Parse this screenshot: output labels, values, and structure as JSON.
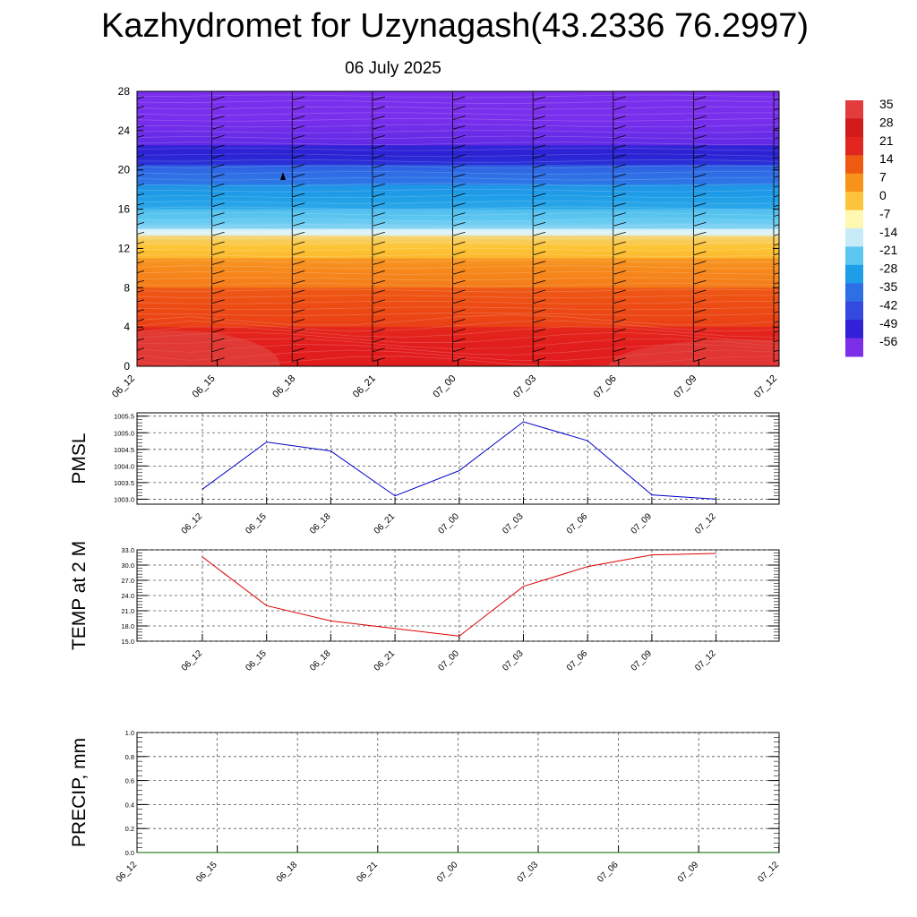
{
  "header": {
    "title": "Kazhydromet for Uzynagash(43.2336 76.2997)",
    "date": "06 July 2025"
  },
  "colorbar": {
    "labels": [
      "35",
      "28",
      "21",
      "14",
      "7",
      "0",
      "-7",
      "-14",
      "-21",
      "-28",
      "-35",
      "-42",
      "-49",
      "-56"
    ],
    "colors": [
      "#e23c3c",
      "#d11a1a",
      "#e0261f",
      "#ef5a12",
      "#f7931a",
      "#fdc33a",
      "#fff8b0",
      "#c8ecf7",
      "#5cc6f0",
      "#1e9ee8",
      "#2f6fe6",
      "#3349e0",
      "#3321d8",
      "#7d2ee8"
    ]
  },
  "chart_data": [
    {
      "type": "heatmap",
      "name": "temperature-cross-section",
      "x": [
        "06_12",
        "06_15",
        "06_18",
        "06_21",
        "07_00",
        "07_03",
        "07_06",
        "07_09",
        "07_12"
      ],
      "y_ticks": [
        "0",
        "4",
        "8",
        "12",
        "16",
        "20",
        "24",
        "28"
      ],
      "ylim": [
        0,
        28
      ],
      "value_range": [
        -56,
        35
      ],
      "layers": [
        {
          "from": 0,
          "to": 4,
          "color": "#e21e1e"
        },
        {
          "from": 4,
          "to": 8,
          "color": "#ed4a14"
        },
        {
          "from": 8,
          "to": 11,
          "color": "#f5861b"
        },
        {
          "from": 11,
          "to": 13.3,
          "color": "#fdc535"
        },
        {
          "from": 13.3,
          "to": 14,
          "color": "#dff4fa"
        },
        {
          "from": 14,
          "to": 16,
          "color": "#5cc6f0"
        },
        {
          "from": 16,
          "to": 18.5,
          "color": "#1e9ee8"
        },
        {
          "from": 18.5,
          "to": 20.5,
          "color": "#2f6fe6"
        },
        {
          "from": 20.5,
          "to": 22.5,
          "color": "#2a22d4"
        },
        {
          "from": 22.5,
          "to": 28,
          "color": "#7a2fed"
        }
      ]
    },
    {
      "type": "line",
      "ylabel": "PMSL",
      "categories": [
        "06_12",
        "06_15",
        "06_18",
        "06_21",
        "07_00",
        "07_03",
        "07_06",
        "07_09",
        "07_12"
      ],
      "series": [
        {
          "values": [
            1003.3,
            1004.72,
            1004.45,
            1003.1,
            1003.86,
            1005.33,
            1004.76,
            1003.13,
            1003.0
          ],
          "color": "#0000cc"
        }
      ],
      "y_ticks": [
        "1003.0",
        "1003.5",
        "1004.0",
        "1004.5",
        "1005.0",
        "1005.5"
      ],
      "ylim": [
        1002.85,
        1005.6
      ],
      "grid": true
    },
    {
      "type": "line",
      "ylabel": "TEMP at 2 M",
      "categories": [
        "06_12",
        "06_15",
        "06_18",
        "06_21",
        "07_00",
        "07_03",
        "07_06",
        "07_09",
        "07_12"
      ],
      "series": [
        {
          "values": [
            31.6,
            22.0,
            19.0,
            17.5,
            16.0,
            25.8,
            29.7,
            32.0,
            32.3
          ],
          "color": "#dd0000"
        }
      ],
      "y_ticks": [
        "15.0",
        "18.0",
        "21.0",
        "24.0",
        "27.0",
        "30.0",
        "33.0"
      ],
      "ylim": [
        15,
        33
      ],
      "grid": true
    },
    {
      "type": "line",
      "ylabel": "PRECIP, mm",
      "categories": [
        "06_12",
        "06_15",
        "06_18",
        "06_21",
        "07_00",
        "07_03",
        "07_06",
        "07_09",
        "07_12"
      ],
      "series": [
        {
          "values": [
            0,
            0,
            0,
            0,
            0,
            0,
            0,
            0,
            0
          ],
          "color": "#006600"
        }
      ],
      "y_ticks": [
        "0.0",
        "0.2",
        "0.4",
        "0.6",
        "0.8",
        "1.0"
      ],
      "ylim": [
        0,
        1
      ],
      "grid": true
    }
  ]
}
